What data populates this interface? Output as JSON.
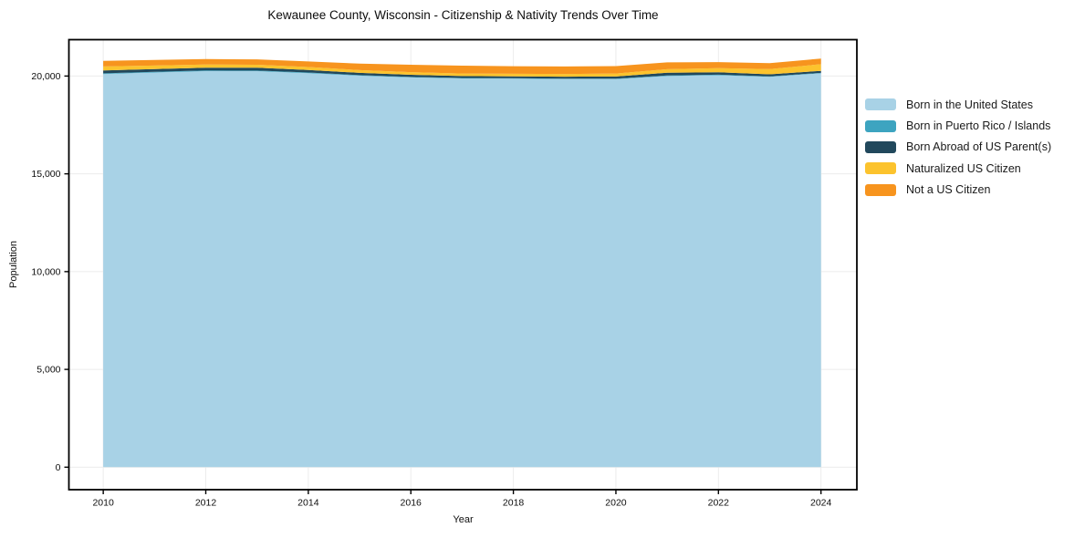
{
  "chart_data": {
    "type": "area",
    "stacked": true,
    "title": "Kewaunee County, Wisconsin - Citizenship & Nativity Trends Over Time",
    "xlabel": "Year",
    "ylabel": "Population",
    "legend_position": "right-outside",
    "grid": true,
    "grid_color": "#ececec",
    "frame_color": "#000000",
    "background_color": "#ffffff",
    "xlim": [
      2009.33,
      2024.7
    ],
    "ylim": [
      -1150,
      21860
    ],
    "x": [
      2010,
      2011,
      2012,
      2013,
      2014,
      2015,
      2016,
      2017,
      2018,
      2019,
      2020,
      2021,
      2022,
      2023,
      2024
    ],
    "x_ticks": [
      {
        "value": 2010,
        "label": "2010"
      },
      {
        "value": 2012,
        "label": "2012"
      },
      {
        "value": 2014,
        "label": "2014"
      },
      {
        "value": 2016,
        "label": "2016"
      },
      {
        "value": 2018,
        "label": "2018"
      },
      {
        "value": 2020,
        "label": "2020"
      },
      {
        "value": 2022,
        "label": "2022"
      },
      {
        "value": 2024,
        "label": "2024"
      }
    ],
    "y_ticks": [
      {
        "value": 0,
        "label": "0"
      },
      {
        "value": 5000,
        "label": "5,000"
      },
      {
        "value": 10000,
        "label": "10,000"
      },
      {
        "value": 15000,
        "label": "15,000"
      },
      {
        "value": 20000,
        "label": "20,000"
      }
    ],
    "series": [
      {
        "name": "Born in the United States",
        "color": "#a8d2e6",
        "values": [
          20100,
          20180,
          20250,
          20250,
          20150,
          20020,
          19930,
          19880,
          19870,
          19850,
          19840,
          20000,
          20040,
          19960,
          20140
        ]
      },
      {
        "name": "Born in Puerto Rico / Islands",
        "color": "#3da4c0",
        "values": [
          40,
          35,
          35,
          30,
          30,
          25,
          25,
          20,
          20,
          20,
          25,
          30,
          30,
          25,
          25
        ]
      },
      {
        "name": "Born Abroad of US Parent(s)",
        "color": "#21485c",
        "values": [
          150,
          140,
          140,
          150,
          130,
          120,
          110,
          100,
          95,
          95,
          110,
          140,
          120,
          105,
          100
        ]
      },
      {
        "name": "Naturalized US Citizen",
        "color": "#fcc32d",
        "values": [
          200,
          180,
          160,
          150,
          150,
          140,
          135,
          130,
          130,
          140,
          155,
          180,
          210,
          270,
          340
        ]
      },
      {
        "name": "Not a US Citizen",
        "color": "#f7941e",
        "values": [
          290,
          285,
          280,
          275,
          285,
          330,
          380,
          400,
          390,
          385,
          380,
          350,
          315,
          300,
          290
        ]
      }
    ]
  }
}
